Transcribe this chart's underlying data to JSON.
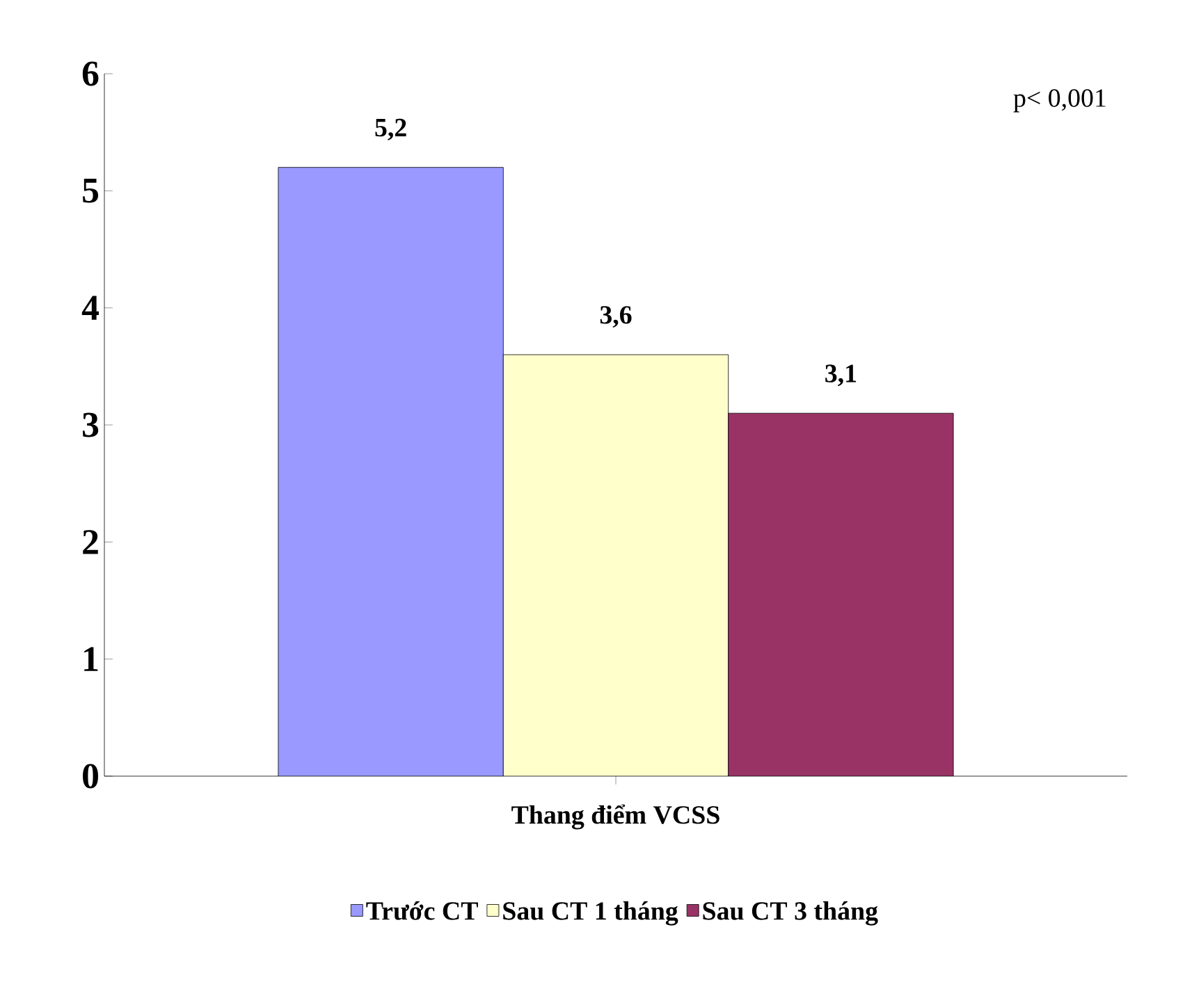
{
  "chart_data": {
    "type": "bar",
    "xlabel": "Thang điểm VCSS",
    "categories": [
      null
    ],
    "series": [
      {
        "name": "Trước CT",
        "color": "#9999ff",
        "values": [
          5.2
        ],
        "value_labels": [
          "5,2"
        ]
      },
      {
        "name": "Sau CT 1 tháng",
        "color": "#ffffcc",
        "values": [
          3.6
        ],
        "value_labels": [
          "3,6"
        ]
      },
      {
        "name": "Sau CT 3 tháng",
        "color": "#993366",
        "values": [
          3.1
        ],
        "value_labels": [
          "3,1"
        ]
      }
    ],
    "ylim": [
      0,
      6
    ],
    "yticks": [
      0,
      1,
      2,
      3,
      4,
      5,
      6
    ],
    "grid": false,
    "legend": "bottom",
    "annotations": [
      "p< 0,001"
    ]
  }
}
